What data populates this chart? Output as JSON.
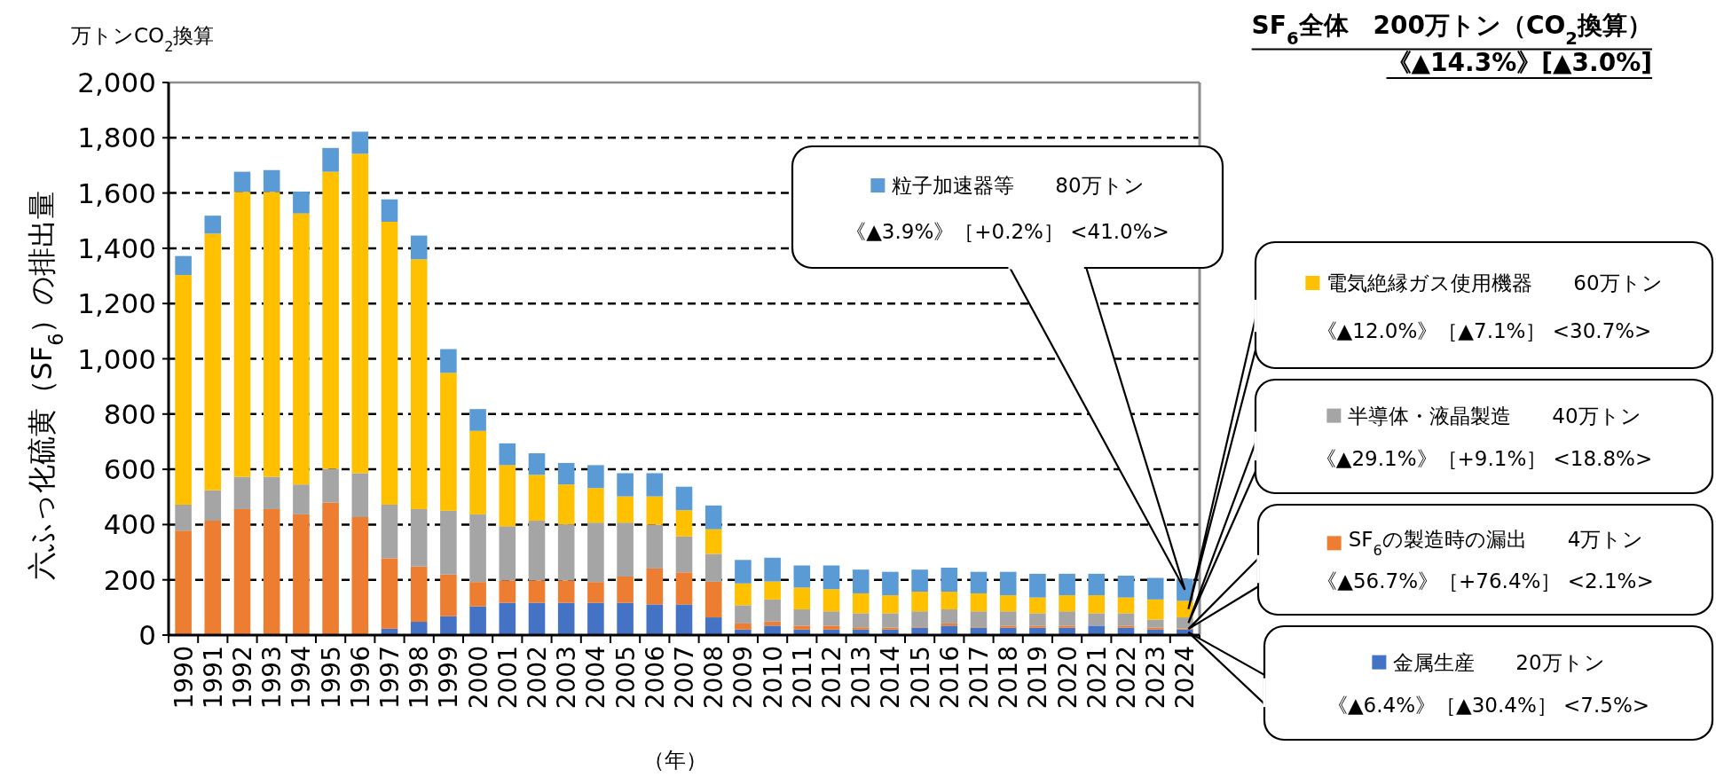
{
  "chart_data": {
    "type": "bar",
    "stacked": true,
    "title": "SF$_{6}$全体　200万トン（CO$_{2}$換算）",
    "subtitle": "《▲14.3%》[▲3.0%]",
    "ylabel": "六ふっ化硫黄（SF$_{6}$）の排出量",
    "xlabel": "（年）",
    "annotations": [
      "万トンCO$_{2}$換算",
      "《▲6.4%》［▲30.4%］ <7.5%>",
      "《▲56.7%》［+76.4%］ <2.1%>",
      "《▲29.1%》［+9.1%］ <18.8%>",
      "《▲12.0%》［▲7.1%］ <30.7%>",
      "《▲3.9%》［+0.2%］ <41.0%>"
    ],
    "categories": [
      "1990",
      "1991",
      "1992",
      "1993",
      "1994",
      "1995",
      "1996",
      "1997",
      "1998",
      "1999",
      "2000",
      "2001",
      "2002",
      "2003",
      "2004",
      "2005",
      "2006",
      "2007",
      "2008",
      "2009",
      "2010",
      "2011",
      "2012",
      "2013",
      "2014",
      "2015",
      "2016",
      "2017",
      "2018",
      "2019",
      "2020",
      "2021",
      "2022",
      "2023",
      "2024"
    ],
    "ylim": [
      0,
      2000
    ],
    "yticks": [
      0,
      200,
      400,
      600,
      800,
      {
        "value": 1000,
        "label": "1,000"
      },
      {
        "value": 1200,
        "label": "1,200"
      },
      {
        "value": 1400,
        "label": "1,400"
      },
      {
        "value": 1600,
        "label": "1,600"
      },
      {
        "value": 1800,
        "label": "1,800"
      },
      {
        "value": 2000,
        "label": "2,000"
      }
    ],
    "grid": "y",
    "legend": "right",
    "series": [
      {
        "name": "金属生産　　20万トン",
        "color": "#4472c4",
        "values": [
          3,
          3,
          3,
          3,
          3,
          3,
          3,
          23,
          48,
          68,
          104,
          117,
          117,
          117,
          117,
          117,
          111,
          111,
          64,
          20,
          34,
          20,
          20,
          20,
          20,
          27,
          34,
          27,
          27,
          27,
          27,
          34,
          27,
          20,
          20
        ]
      },
      {
        "name": "SF$_{6}$の製造時の漏出　　4万トン",
        "color": "#ed7d31",
        "values": [
          375,
          411,
          453,
          453,
          434,
          477,
          424,
          255,
          200,
          151,
          88,
          81,
          81,
          81,
          75,
          95,
          130,
          116,
          129,
          22,
          15,
          14,
          14,
          8,
          7,
          2,
          8,
          2,
          7,
          7,
          7,
          null,
          7,
          7,
          4
        ]
      },
      {
        "name": "半導体・液晶製造　　40万トン",
        "color": "#a5a5a5",
        "values": [
          94,
          110,
          117,
          117,
          108,
          122,
          159,
          194,
          208,
          231,
          245,
          196,
          216,
          203,
          215,
          195,
          159,
          130,
          101,
          66,
          80,
          59,
          52,
          51,
          52,
          57,
          51,
          57,
          52,
          45,
          52,
          45,
          45,
          29,
          40
        ]
      },
      {
        "name": "電気絶縁ガス使用機器　　60万トン",
        "color": "#ffc000",
        "values": [
          831,
          929,
          1031,
          1031,
          981,
          1075,
          1156,
          1024,
          904,
          499,
          302,
          221,
          166,
          144,
          125,
          95,
          102,
          95,
          89,
          79,
          65,
          79,
          80,
          72,
          65,
          71,
          64,
          65,
          58,
          57,
          58,
          65,
          57,
          73,
          60
        ]
      },
      {
        "name": "粒子加速器等　　80万トン",
        "color": "#5b9bd5",
        "values": [
          69,
          65,
          73,
          79,
          79,
          86,
          80,
          81,
          86,
          86,
          79,
          79,
          78,
          78,
          83,
          84,
          84,
          85,
          86,
          85,
          86,
          80,
          86,
          86,
          85,
          80,
          87,
          78,
          85,
          86,
          78,
          78,
          79,
          78,
          80
        ]
      }
    ]
  }
}
